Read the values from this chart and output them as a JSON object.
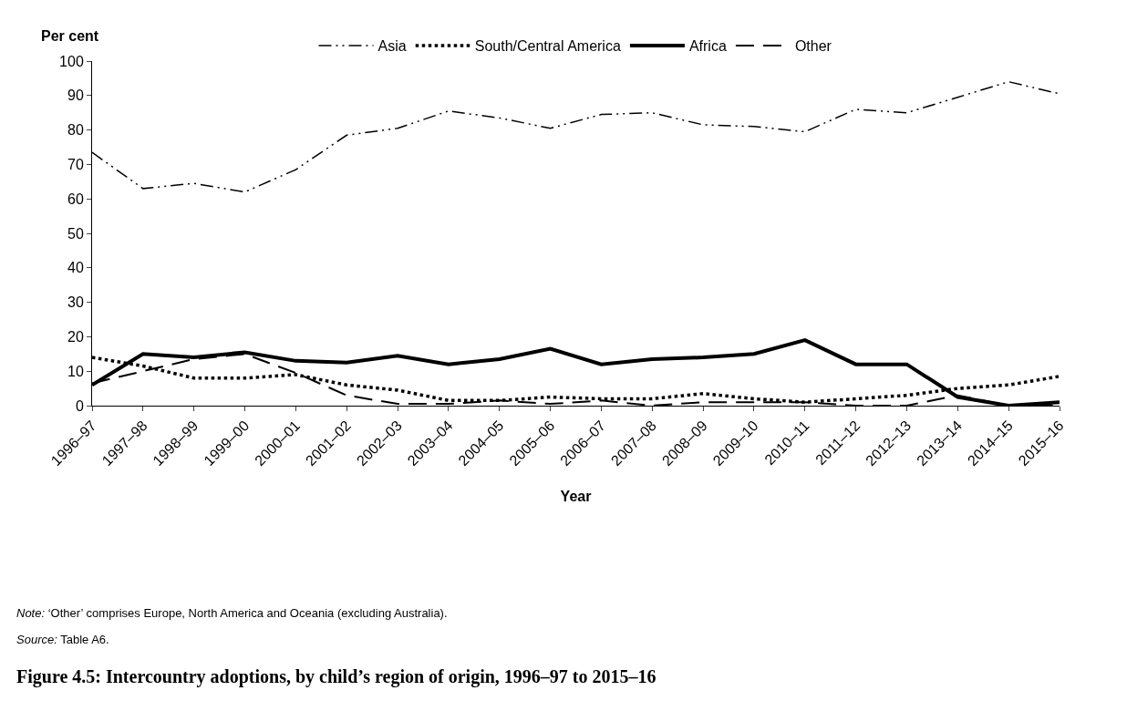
{
  "chart_data": {
    "type": "line",
    "title": "Figure 4.5: Intercountry adoptions, by child’s region of origin, 1996–97 to 2015–16",
    "xlabel": "Year",
    "ylabel": "Per cent",
    "annotations": [
      "Note: ‘Other’ comprises Europe, North America and Oceania (excluding Australia).",
      "Source: Table A6."
    ],
    "categories": [
      "1996–97",
      "1997–98",
      "1998–99",
      "1999–00",
      "2000–01",
      "2001–02",
      "2002–03",
      "2003–04",
      "2004–05",
      "2005–06",
      "2006–07",
      "2007–08",
      "2008–09",
      "2009–10",
      "2010–11",
      "2011–12",
      "2012–13",
      "2013–14",
      "2014–15",
      "2015–16"
    ],
    "series": [
      {
        "name": "Asia",
        "color": "#000000",
        "line_style": "dashdot",
        "values": [
          73.5,
          63,
          64.5,
          62,
          68.5,
          78.5,
          80.5,
          85.5,
          83.5,
          80.5,
          84.5,
          85,
          81.5,
          81,
          79.5,
          86,
          85,
          89.5,
          94,
          90.5
        ]
      },
      {
        "name": "South/Central America",
        "color": "#000000",
        "line_style": "dotted",
        "values": [
          14,
          11.5,
          8,
          8,
          9,
          6,
          4.5,
          1.5,
          1.5,
          2.5,
          2,
          2,
          3.5,
          2,
          1,
          2,
          3,
          5,
          6,
          8.5
        ]
      },
      {
        "name": "Africa",
        "color": "#000000",
        "line_style": "solid",
        "values": [
          6,
          15,
          14,
          15.5,
          13,
          12.5,
          14.5,
          12,
          13.5,
          16.5,
          12,
          13.5,
          14,
          15,
          19,
          12,
          12,
          2.5,
          0,
          1
        ]
      },
      {
        "name": "Other",
        "color": "#000000",
        "line_style": "dashed",
        "values": [
          6.5,
          10,
          13.5,
          15,
          9.5,
          3,
          0.5,
          0.5,
          1.5,
          0.5,
          1.5,
          0,
          1,
          1,
          1,
          0,
          0,
          3,
          0,
          0
        ]
      }
    ],
    "ylim": [
      0,
      100
    ],
    "yticks": [
      0,
      10,
      20,
      30,
      40,
      50,
      60,
      70,
      80,
      90,
      100
    ],
    "grid": false,
    "legend": "top",
    "marker": "none"
  }
}
